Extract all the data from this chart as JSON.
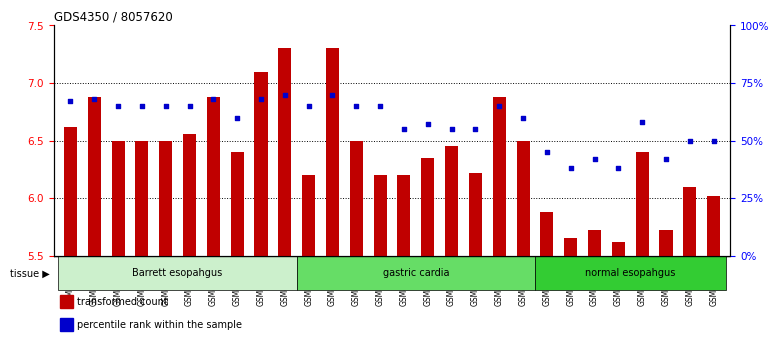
{
  "title": "GDS4350 / 8057620",
  "samples": [
    "GSM851983",
    "GSM851984",
    "GSM851985",
    "GSM851986",
    "GSM851987",
    "GSM851988",
    "GSM851989",
    "GSM851990",
    "GSM851991",
    "GSM851992",
    "GSM852001",
    "GSM852002",
    "GSM852003",
    "GSM852004",
    "GSM852005",
    "GSM852006",
    "GSM852007",
    "GSM852008",
    "GSM852009",
    "GSM852010",
    "GSM851993",
    "GSM851994",
    "GSM851995",
    "GSM851996",
    "GSM851997",
    "GSM851998",
    "GSM851999",
    "GSM852000"
  ],
  "bar_values": [
    6.62,
    6.88,
    6.5,
    6.5,
    6.5,
    6.56,
    6.88,
    6.4,
    7.1,
    7.3,
    6.2,
    7.3,
    6.5,
    6.2,
    6.2,
    6.35,
    6.45,
    6.22,
    6.88,
    6.5,
    5.88,
    5.65,
    5.72,
    5.62,
    6.4,
    5.72,
    6.1,
    6.02
  ],
  "dot_values": [
    67,
    68,
    65,
    65,
    65,
    65,
    68,
    60,
    68,
    70,
    65,
    70,
    65,
    65,
    55,
    57,
    55,
    55,
    65,
    60,
    45,
    38,
    42,
    38,
    58,
    42,
    50,
    50
  ],
  "bar_color": "#c00000",
  "dot_color": "#0000cc",
  "ylim_left": [
    5.5,
    7.5
  ],
  "ylim_right": [
    0,
    100
  ],
  "yticks_left": [
    5.5,
    6.0,
    6.5,
    7.0,
    7.5
  ],
  "yticks_right": [
    0,
    25,
    50,
    75,
    100
  ],
  "ytick_labels_right": [
    "0%",
    "25%",
    "50%",
    "75%",
    "100%"
  ],
  "hlines": [
    6.0,
    6.5,
    7.0
  ],
  "groups": [
    {
      "label": "Barrett esopahgus",
      "start": 0,
      "end": 10,
      "color": "#ccf0cc"
    },
    {
      "label": "gastric cardia",
      "start": 10,
      "end": 20,
      "color": "#66dd66"
    },
    {
      "label": "normal esopahgus",
      "start": 20,
      "end": 28,
      "color": "#33cc33"
    }
  ],
  "tissue_label": "tissue",
  "legend_items": [
    {
      "label": "transformed count",
      "color": "#c00000"
    },
    {
      "label": "percentile rank within the sample",
      "color": "#0000cc"
    }
  ],
  "background_color": "#ffffff",
  "bar_width": 0.55
}
